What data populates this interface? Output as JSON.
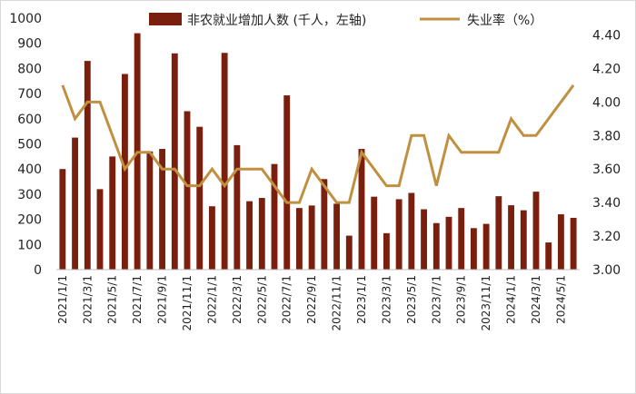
{
  "chart_data": {
    "type": "bar+line",
    "series": [
      {
        "name": "非农就业增加人数 (千人，左轴)",
        "type": "bar",
        "axis": "left",
        "color": "#7a1f0e",
        "values": [
          400,
          525,
          830,
          320,
          450,
          778,
          940,
          470,
          480,
          860,
          630,
          568,
          252,
          862,
          495,
          272,
          285,
          420,
          693,
          245,
          255,
          360,
          262,
          135,
          480,
          290,
          145,
          280,
          305,
          240,
          185,
          210,
          245,
          165,
          182,
          292,
          256,
          236,
          310,
          108,
          220,
          206
        ]
      },
      {
        "name": "失业率（%）",
        "type": "line",
        "axis": "right",
        "color": "#c09040",
        "values": [
          4.1,
          3.9,
          4.0,
          4.0,
          3.8,
          3.6,
          3.7,
          3.7,
          3.6,
          3.6,
          3.5,
          3.5,
          3.6,
          3.5,
          3.6,
          3.6,
          3.6,
          3.5,
          3.4,
          3.4,
          3.6,
          3.5,
          3.4,
          3.4,
          3.7,
          3.6,
          3.5,
          3.5,
          3.8,
          3.8,
          3.5,
          3.8,
          3.7,
          3.7,
          3.7,
          3.7,
          3.9,
          3.8,
          3.8,
          3.9,
          4.0,
          4.1
        ]
      }
    ],
    "y_left": {
      "min": 0,
      "max": 1000,
      "ticks": [
        "0",
        "100",
        "200",
        "300",
        "400",
        "500",
        "600",
        "700",
        "800",
        "900",
        "1000"
      ]
    },
    "y_right": {
      "min": 3.0,
      "max": 4.5,
      "ticks": [
        "3.00",
        "3.20",
        "3.40",
        "3.60",
        "3.80",
        "4.00",
        "4.20",
        "4.40"
      ]
    },
    "x_labels": [
      "2021/1/1",
      "2021/3/1",
      "2021/5/1",
      "2021/7/1",
      "2021/9/1",
      "2021/11/1",
      "2022/1/1",
      "2022/3/1",
      "2022/5/1",
      "2022/7/1",
      "2022/9/1",
      "2022/11/1",
      "2023/1/1",
      "2023/3/1",
      "2023/5/1",
      "2023/7/1",
      "2023/9/1",
      "2023/11/1",
      "2024/1/1",
      "2024/3/1",
      "2024/5/1"
    ],
    "grid": false,
    "legend": "top-center"
  }
}
